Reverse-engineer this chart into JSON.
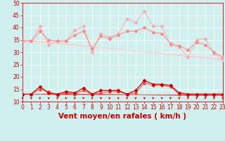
{
  "bg_color": "#cff0ee",
  "grid_color": "#ffffff",
  "xlabel": "Vent moyen/en rafales ( km/h )",
  "xlabel_color": "#cc0000",
  "xlabel_fontsize": 7.5,
  "tick_color": "#cc0000",
  "ylim": [
    10,
    50
  ],
  "xlim": [
    0,
    23
  ],
  "yticks": [
    10,
    15,
    20,
    25,
    30,
    35,
    40,
    45,
    50
  ],
  "xticks": [
    0,
    1,
    2,
    3,
    4,
    5,
    6,
    7,
    8,
    9,
    10,
    11,
    12,
    13,
    14,
    15,
    16,
    17,
    18,
    19,
    20,
    21,
    22,
    23
  ],
  "line1_x": [
    0,
    1,
    2,
    3,
    4,
    5,
    6,
    7,
    8,
    9,
    10,
    11,
    12,
    13,
    14,
    15,
    16,
    17,
    18,
    19,
    20,
    21,
    22,
    23
  ],
  "line1_y": [
    34.5,
    34.5,
    40.5,
    33.0,
    34.5,
    34.5,
    39.0,
    40.5,
    30.0,
    37.5,
    36.0,
    37.5,
    43.5,
    42.0,
    46.5,
    40.5,
    40.5,
    33.0,
    32.0,
    28.0,
    35.0,
    35.5,
    29.5,
    27.0
  ],
  "line1_color": "#ffaaaa",
  "line2_x": [
    0,
    1,
    2,
    3,
    4,
    5,
    6,
    7,
    8,
    9,
    10,
    11,
    12,
    13,
    14,
    15,
    16,
    17,
    18,
    19,
    20,
    21,
    22,
    23
  ],
  "line2_y": [
    34.5,
    34.5,
    38.5,
    35.0,
    34.5,
    34.5,
    37.0,
    38.5,
    31.5,
    36.5,
    35.5,
    37.0,
    38.5,
    38.5,
    40.0,
    38.0,
    37.5,
    33.5,
    32.5,
    31.0,
    34.0,
    33.0,
    30.0,
    28.0
  ],
  "line2_color": "#ff8888",
  "line3_x": [
    0,
    23
  ],
  "line3_y": [
    35.0,
    27.0
  ],
  "line3_color": "#ffbbbb",
  "line4_x": [
    0,
    23
  ],
  "line4_y": [
    34.5,
    27.5
  ],
  "line4_color": "#ffdddd",
  "line5_x": [
    0,
    1,
    2,
    3,
    4,
    5,
    6,
    7,
    8,
    9,
    10,
    11,
    12,
    13,
    14,
    15,
    16,
    17,
    18,
    19,
    20,
    21,
    22,
    23
  ],
  "line5_y": [
    13.0,
    13.0,
    16.0,
    13.5,
    13.0,
    14.0,
    13.5,
    15.5,
    13.0,
    14.5,
    14.5,
    14.5,
    13.0,
    14.5,
    18.5,
    17.0,
    17.0,
    16.5,
    13.5,
    13.0,
    13.0,
    13.0,
    13.0,
    13.0
  ],
  "line5_color": "#cc0000",
  "line6_x": [
    0,
    1,
    2,
    3,
    4,
    5,
    6,
    7,
    8,
    9,
    10,
    11,
    12,
    13,
    14,
    15,
    16,
    17,
    18,
    19,
    20,
    21,
    22,
    23
  ],
  "line6_y": [
    13.0,
    13.0,
    15.0,
    14.0,
    12.5,
    13.5,
    13.0,
    14.5,
    13.0,
    13.5,
    14.0,
    14.0,
    13.0,
    13.5,
    17.5,
    16.5,
    16.5,
    16.0,
    13.0,
    12.5,
    12.5,
    12.5,
    12.5,
    12.5
  ],
  "line6_color": "#ff4444",
  "line7_x": [
    0,
    23
  ],
  "line7_y": [
    13.0,
    12.5
  ],
  "line7_color": "#cc0000",
  "line8_x": [
    0,
    23
  ],
  "line8_y": [
    13.0,
    12.5
  ],
  "line8_color": "#ff6666",
  "marker": "D",
  "markersize": 2.0,
  "arrow_color": "#cc0000",
  "tickfontsize": 5.5,
  "linewidth_thin": 0.7,
  "linewidth_thick": 0.9
}
